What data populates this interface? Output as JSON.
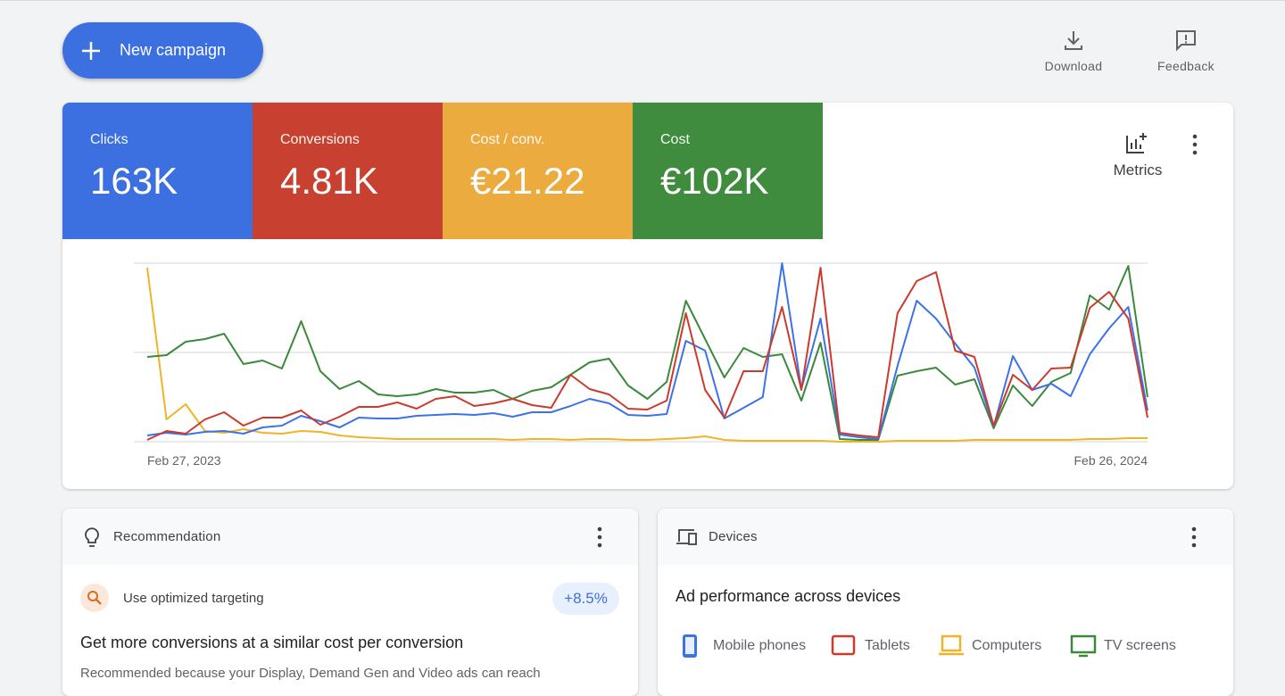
{
  "toolbar": {
    "new_campaign": "New campaign",
    "download": "Download",
    "feedback": "Feedback"
  },
  "summary": {
    "metrics": [
      {
        "label": "Clicks",
        "value": "163K",
        "color": "#3c6fe0"
      },
      {
        "label": "Conversions",
        "value": "4.81K",
        "color": "#c8402f"
      },
      {
        "label": "Cost / conv.",
        "value": "€21.22",
        "color": "#ecab3e"
      },
      {
        "label": "Cost",
        "value": "€102K",
        "color": "#3f8c3f"
      }
    ],
    "metrics_button": "Metrics"
  },
  "chart_data": {
    "type": "line",
    "categories": [
      "Feb 27, 2023",
      null,
      null,
      null,
      null,
      null,
      null,
      null,
      null,
      null,
      null,
      null,
      null,
      null,
      null,
      null,
      null,
      null,
      null,
      null,
      null,
      null,
      null,
      null,
      null,
      null,
      null,
      null,
      null,
      null,
      null,
      null,
      null,
      null,
      null,
      null,
      null,
      null,
      null,
      null,
      null,
      null,
      null,
      null,
      null,
      null,
      null,
      null,
      null,
      null,
      null,
      null,
      "Feb 26, 2024"
    ],
    "ylim": [
      0,
      100
    ],
    "gridlines": [
      0,
      50,
      100
    ],
    "series": [
      {
        "color": "#f0b428",
        "values": [
          97.5,
          12.5,
          21,
          6,
          5,
          7,
          5,
          4.5,
          6,
          5.5,
          3.5,
          2.5,
          2,
          1.5,
          1.5,
          1.5,
          1.5,
          1.5,
          1.5,
          1,
          1.5,
          1.5,
          1,
          1.5,
          1.5,
          1,
          1,
          1.5,
          2,
          3,
          1,
          0.5,
          0.5,
          0.5,
          0.5,
          0.5,
          0,
          0,
          0,
          0.5,
          0.5,
          0.5,
          0.5,
          1,
          1,
          1,
          1,
          1,
          1,
          1.5,
          1.5,
          2,
          2
        ]
      },
      {
        "color": "#3a8a3a",
        "values": [
          47.5,
          48.5,
          56,
          57.5,
          60.5,
          43.5,
          45.5,
          41,
          67.5,
          39.5,
          29.5,
          34,
          26.5,
          25.5,
          26.5,
          29.5,
          27.5,
          27.5,
          29,
          24,
          28.5,
          30.5,
          37.5,
          44.5,
          46.5,
          31.5,
          24,
          33.5,
          79,
          57.5,
          36,
          52.5,
          47.5,
          49,
          23,
          55.5,
          1.5,
          1,
          1,
          37,
          39.5,
          41.5,
          32,
          35,
          7.5,
          31.5,
          20,
          33.5,
          38.5,
          82,
          74,
          98.5,
          25
        ]
      },
      {
        "color": "#3b72e8",
        "values": [
          3.5,
          5,
          4,
          5.5,
          6,
          4.5,
          8,
          9,
          14.5,
          11.5,
          8,
          13.5,
          13,
          13,
          14.5,
          15,
          15.5,
          15,
          16,
          14,
          16.5,
          16.5,
          20,
          24,
          21.5,
          15,
          14.5,
          15.5,
          56.5,
          51,
          13,
          19,
          25,
          100,
          29.5,
          69,
          4,
          2.5,
          1.5,
          42.5,
          79,
          69,
          55,
          41.5,
          8.5,
          48,
          29,
          32.5,
          25.5,
          49,
          63.5,
          75.5,
          17.5
        ]
      },
      {
        "color": "#cc3a2e",
        "values": [
          1,
          6,
          4.5,
          12.5,
          16.5,
          9,
          13.5,
          13.5,
          17.5,
          9.5,
          14,
          19.5,
          19.5,
          22,
          18.5,
          24,
          25.5,
          20,
          21.5,
          24,
          20.5,
          19,
          37.5,
          29.5,
          26.5,
          18.5,
          18,
          23,
          72,
          29,
          13.5,
          39.5,
          39.5,
          75.5,
          29,
          97.5,
          5,
          3.5,
          2.5,
          72,
          90,
          95,
          51,
          47.5,
          9,
          37.5,
          29,
          41,
          41.5,
          75,
          84,
          69,
          13.5
        ]
      }
    ]
  },
  "recommendation": {
    "title": "Recommendation",
    "item": "Use optimized targeting",
    "uplift": "+8.5%",
    "headline": "Get more conversions at a similar cost per conversion",
    "description": "Recommended because your Display, Demand Gen and Video ads can reach"
  },
  "devices": {
    "title": "Devices",
    "heading": "Ad performance across devices",
    "legend": [
      {
        "label": "Mobile phones",
        "color": "#3b72e8"
      },
      {
        "label": "Tablets",
        "color": "#cc3a2e"
      },
      {
        "label": "Computers",
        "color": "#f0b428"
      },
      {
        "label": "TV screens",
        "color": "#3a8a3a"
      }
    ]
  }
}
